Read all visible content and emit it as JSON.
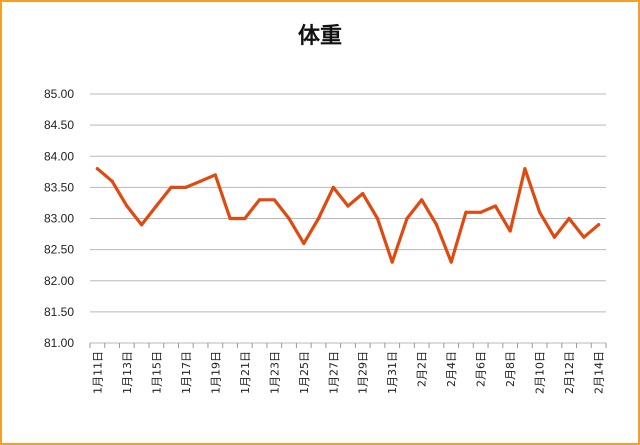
{
  "chart_data": {
    "type": "line",
    "title": "体重",
    "xlabel": "",
    "ylabel": "",
    "ylim": [
      81.0,
      85.0
    ],
    "y_ticks": [
      "85.00",
      "84.50",
      "84.00",
      "83.50",
      "83.00",
      "82.50",
      "82.00",
      "81.50",
      "81.00"
    ],
    "grid": true,
    "legend": "none",
    "line_color": "#e04a10",
    "categories": [
      "1月11日",
      "1月12日",
      "1月13日",
      "1月14日",
      "1月15日",
      "1月16日",
      "1月17日",
      "1月18日",
      "1月19日",
      "1月20日",
      "1月21日",
      "1月22日",
      "1月23日",
      "1月24日",
      "1月25日",
      "1月26日",
      "1月27日",
      "1月28日",
      "1月29日",
      "1月30日",
      "1月31日",
      "2月1日",
      "2月2日",
      "2月3日",
      "2月4日",
      "2月5日",
      "2月6日",
      "2月7日",
      "2月8日",
      "2月9日",
      "2月10日",
      "2月11日",
      "2月12日",
      "2月13日",
      "2月14日"
    ],
    "x_tick_labels": [
      "1月11日",
      "1月13日",
      "1月15日",
      "1月17日",
      "1月19日",
      "1月21日",
      "1月23日",
      "1月25日",
      "1月27日",
      "1月29日",
      "1月31日",
      "2月2日",
      "2月4日",
      "2月6日",
      "2月8日",
      "2月10日",
      "2月12日",
      "2月14日"
    ],
    "series": [
      {
        "values": [
          83.8,
          83.6,
          83.2,
          82.9,
          83.2,
          83.5,
          83.5,
          83.6,
          83.7,
          83.0,
          83.0,
          83.3,
          83.3,
          83.0,
          82.6,
          83.0,
          83.5,
          83.2,
          83.4,
          83.0,
          82.3,
          83.0,
          83.3,
          82.9,
          82.3,
          83.1,
          83.1,
          83.2,
          82.8,
          83.8,
          83.1,
          82.7,
          83.0,
          82.7,
          82.9
        ]
      }
    ]
  }
}
